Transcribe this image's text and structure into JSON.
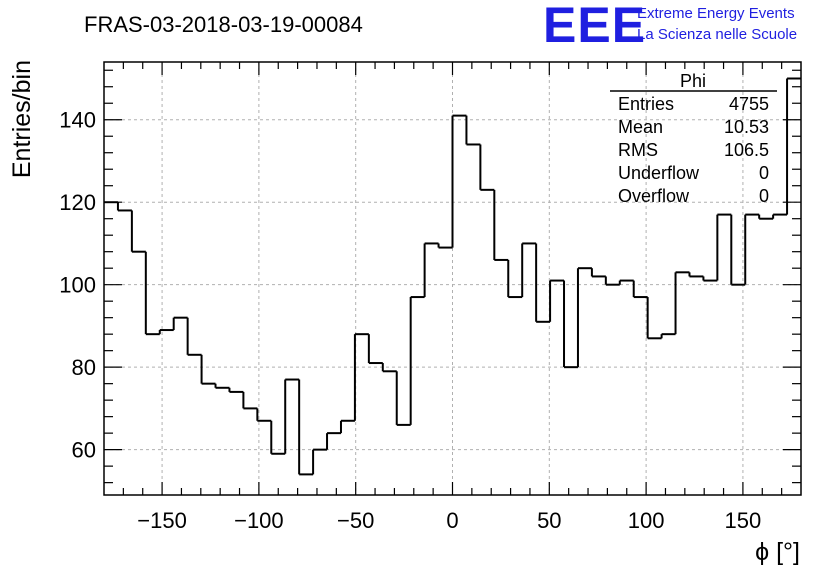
{
  "header": {
    "title": "FRAS-03-2018-03-19-00084",
    "logo_text": "EEE",
    "logo_line1": "Extreme Energy Events",
    "logo_line2": "La Scienza nelle Scuole"
  },
  "colors": {
    "logo": "#1f1fe0",
    "line": "#000000",
    "grid": "#b0b0b0"
  },
  "stats": {
    "name": "Phi",
    "rows": [
      {
        "label": "Entries",
        "value": "4755"
      },
      {
        "label": "Mean",
        "value": "10.53"
      },
      {
        "label": "RMS",
        "value": "106.5"
      },
      {
        "label": "Underflow",
        "value": "0"
      },
      {
        "label": "Overflow",
        "value": "0"
      }
    ]
  },
  "chart_data": {
    "type": "histogram",
    "xlabel": "ϕ [°]",
    "ylabel": "Entries/bin",
    "xlim": [
      -180,
      180
    ],
    "ylim": [
      49,
      154
    ],
    "grid": true,
    "bin_width": 7.2,
    "bin_edges_start": -180,
    "xticks": [
      -150,
      -100,
      -50,
      0,
      50,
      100,
      150
    ],
    "xtick_labels": [
      "−150",
      "−100",
      "−50",
      "0",
      "50",
      "100",
      "150"
    ],
    "yticks": [
      60,
      80,
      100,
      120,
      140
    ],
    "ytick_labels": [
      "60",
      "80",
      "100",
      "120",
      "140"
    ],
    "values": [
      120,
      118,
      108,
      88,
      89,
      92,
      83,
      76,
      75,
      74,
      70,
      67,
      59,
      77,
      54,
      60,
      64,
      67,
      88,
      81,
      79,
      66,
      97,
      110,
      109,
      141,
      134,
      123,
      106,
      97,
      110,
      91,
      101,
      80,
      104,
      102,
      100,
      101,
      97,
      87,
      88,
      103,
      102,
      101,
      117,
      100,
      117,
      116,
      117,
      150
    ]
  }
}
